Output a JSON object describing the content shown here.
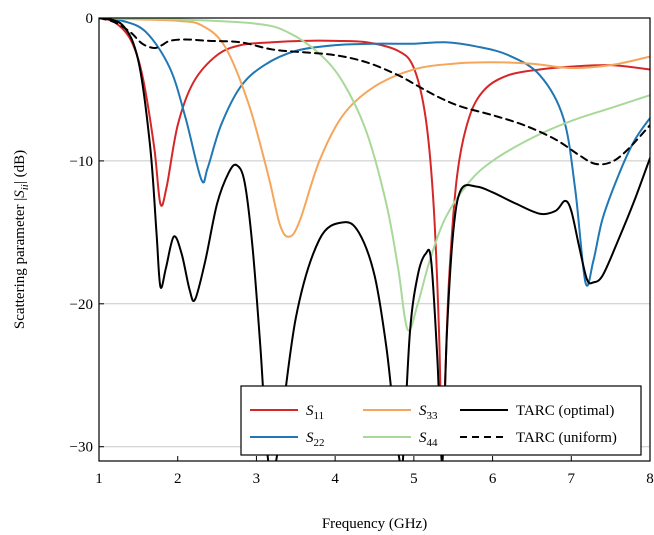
{
  "chart_data": {
    "type": "line",
    "title": "",
    "xlabel": "Frequency (GHz)",
    "ylabel": "Scattering parameter |S_ii| (dB)",
    "ylabel_parts": {
      "prefix": "Scattering parameter |",
      "sym": "S",
      "sub": "ii",
      "suffix": "| (dB)"
    },
    "xlim": [
      1,
      8
    ],
    "ylim": [
      -31,
      0
    ],
    "xticks": [
      1,
      2,
      3,
      4,
      5,
      6,
      7,
      8
    ],
    "yticks": [
      0,
      -10,
      -20,
      -30
    ],
    "ytick_labels": [
      "0",
      "−10",
      "−20",
      "−30"
    ],
    "grid": true,
    "legend_position": "bottom-right",
    "series": [
      {
        "name": "S11",
        "label_sym": "S",
        "label_sub": "11",
        "color": "#d62728",
        "dash": "solid",
        "x": [
          1,
          1.2,
          1.4,
          1.55,
          1.7,
          1.78,
          1.86,
          2.0,
          2.2,
          2.5,
          2.8,
          3.2,
          3.6,
          4.0,
          4.4,
          4.8,
          5.0,
          5.15,
          5.25,
          5.32,
          5.36,
          5.4,
          5.45,
          5.55,
          5.7,
          5.9,
          6.2,
          6.6,
          7.0,
          7.5,
          8.0
        ],
        "y": [
          0,
          -0.3,
          -1.5,
          -4,
          -9,
          -13,
          -11.8,
          -7.5,
          -4.5,
          -2.6,
          -1.9,
          -1.7,
          -1.6,
          -1.6,
          -1.7,
          -2.3,
          -3.5,
          -7,
          -13,
          -22,
          -31,
          -25,
          -18,
          -11,
          -7,
          -5,
          -4,
          -3.6,
          -3.4,
          -3.3,
          -3.6
        ]
      },
      {
        "name": "S22",
        "label_sym": "S",
        "label_sub": "22",
        "color": "#1f77b4",
        "dash": "solid",
        "x": [
          1,
          1.3,
          1.6,
          1.9,
          2.1,
          2.3,
          2.38,
          2.55,
          2.8,
          3.1,
          3.5,
          4.0,
          4.5,
          5.0,
          5.4,
          5.8,
          6.2,
          6.6,
          6.9,
          7.05,
          7.18,
          7.28,
          7.4,
          7.6,
          7.8,
          8.0
        ],
        "y": [
          0,
          -0.2,
          -1,
          -3.5,
          -7,
          -11.3,
          -10.5,
          -7.5,
          -4.8,
          -3.3,
          -2.3,
          -1.9,
          -1.8,
          -1.8,
          -1.7,
          -2,
          -2.6,
          -4,
          -7,
          -12,
          -18.5,
          -17,
          -14,
          -11,
          -8.6,
          -7
        ]
      },
      {
        "name": "S33",
        "label_sym": "S",
        "label_sub": "33",
        "color": "#f5a65b",
        "dash": "solid",
        "x": [
          1,
          1.5,
          2.0,
          2.3,
          2.6,
          2.9,
          3.15,
          3.3,
          3.42,
          3.55,
          3.8,
          4.1,
          4.5,
          5.0,
          5.5,
          6.0,
          6.5,
          7.0,
          7.5,
          8.0
        ],
        "y": [
          0,
          -0.1,
          -0.2,
          -0.5,
          -2,
          -6,
          -11,
          -14.5,
          -15.3,
          -14.2,
          -10,
          -6.8,
          -4.8,
          -3.6,
          -3.2,
          -3.1,
          -3.2,
          -3.5,
          -3.3,
          -2.7
        ]
      },
      {
        "name": "S44",
        "label_sym": "S",
        "label_sub": "44",
        "color": "#a8d99a",
        "dash": "solid",
        "x": [
          1,
          2.0,
          3.0,
          3.4,
          3.8,
          4.1,
          4.4,
          4.65,
          4.8,
          4.92,
          5.05,
          5.2,
          5.4,
          5.7,
          6.0,
          6.5,
          7.0,
          7.5,
          8.0
        ],
        "y": [
          0,
          -0.1,
          -0.4,
          -1,
          -2.5,
          -4.5,
          -8,
          -13,
          -17.5,
          -21.8,
          -20,
          -17,
          -14,
          -11.5,
          -10,
          -8.4,
          -7.2,
          -6.3,
          -5.4
        ]
      },
      {
        "name": "TARC (optimal)",
        "label_sym": "",
        "label_sub": "",
        "color": "#000000",
        "dash": "solid",
        "x": [
          1,
          1.3,
          1.5,
          1.65,
          1.73,
          1.78,
          1.85,
          1.95,
          2.05,
          2.15,
          2.22,
          2.35,
          2.5,
          2.65,
          2.75,
          2.85,
          2.95,
          3.05,
          3.15,
          3.25,
          3.5,
          3.8,
          4.1,
          4.3,
          4.5,
          4.65,
          4.75,
          4.82,
          4.86,
          4.95,
          5.05,
          5.15,
          5.22,
          5.3,
          5.36,
          5.42,
          5.5,
          5.6,
          5.8,
          6.0,
          6.3,
          6.6,
          6.8,
          6.92,
          7.0,
          7.1,
          7.2,
          7.28,
          7.4,
          7.6,
          7.8,
          8.0
        ],
        "y": [
          0,
          -0.5,
          -3,
          -9,
          -15,
          -18.8,
          -17.5,
          -15.3,
          -16.5,
          -19,
          -19.7,
          -17,
          -13,
          -10.8,
          -10.3,
          -11.5,
          -16,
          -23,
          -31,
          -31,
          -21,
          -15.5,
          -14.3,
          -15,
          -18,
          -23,
          -28,
          -31,
          -31,
          -22,
          -18,
          -16.5,
          -17,
          -24,
          -31,
          -22,
          -15,
          -12,
          -11.8,
          -12.2,
          -13,
          -13.7,
          -13.5,
          -12.8,
          -13.5,
          -16,
          -18.3,
          -18.5,
          -18,
          -15.5,
          -12.8,
          -9.8
        ]
      },
      {
        "name": "TARC (uniform)",
        "label_sym": "",
        "label_sub": "",
        "color": "#000000",
        "dash": "dashed",
        "x": [
          1,
          1.2,
          1.4,
          1.55,
          1.7,
          1.8,
          1.9,
          2.1,
          2.4,
          2.8,
          3.2,
          3.6,
          4.0,
          4.4,
          4.8,
          5.0,
          5.3,
          5.6,
          6.0,
          6.4,
          6.8,
          7.1,
          7.3,
          7.5,
          7.7,
          8.0
        ],
        "y": [
          0,
          -0.3,
          -1,
          -1.8,
          -2.1,
          -1.9,
          -1.6,
          -1.5,
          -1.6,
          -1.7,
          -2.2,
          -2.4,
          -2.6,
          -3.1,
          -4,
          -4.6,
          -5.5,
          -6.2,
          -6.8,
          -7.5,
          -8.5,
          -9.6,
          -10.2,
          -10.1,
          -9.3,
          -7.5
        ]
      }
    ],
    "legend_order": [
      0,
      2,
      4,
      1,
      3,
      5
    ]
  }
}
